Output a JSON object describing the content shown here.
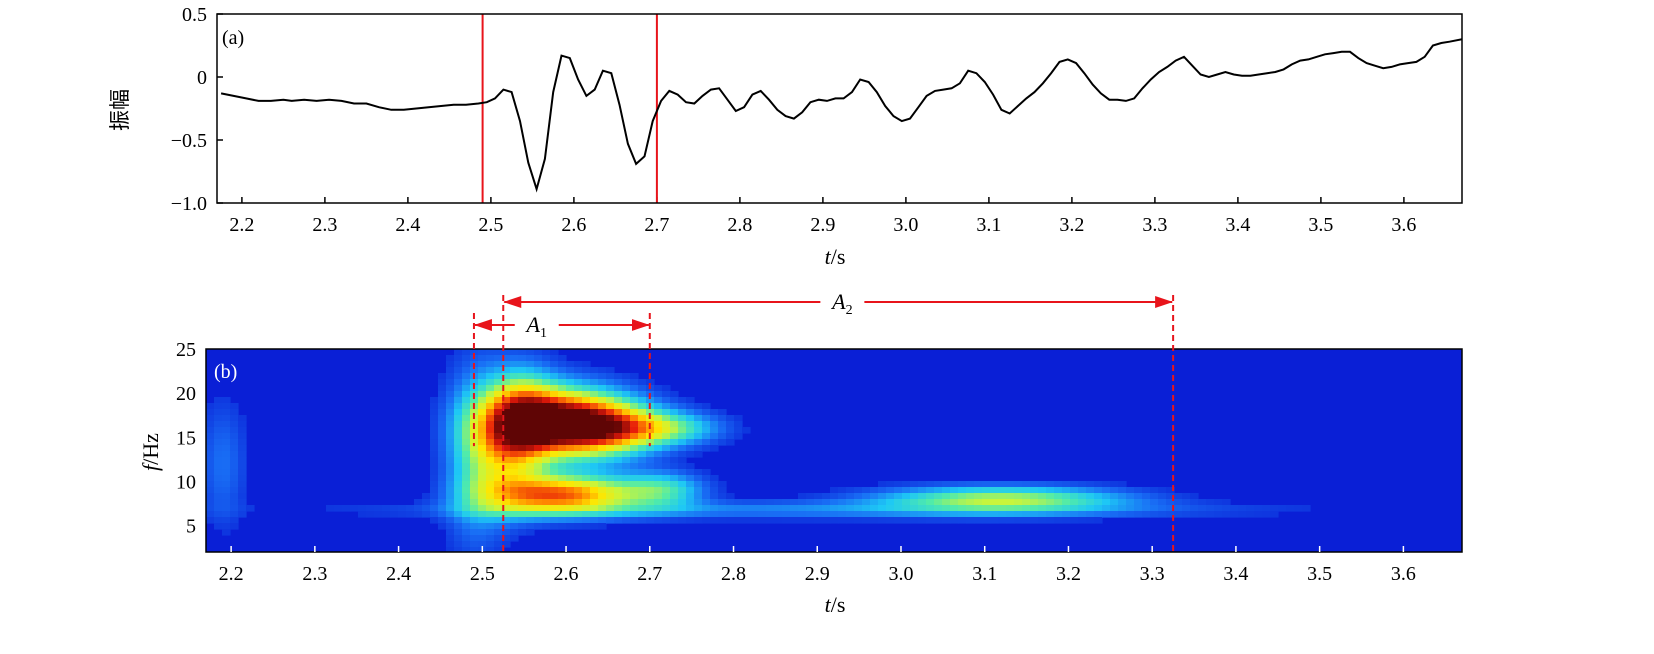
{
  "colors": {
    "waveform": "#000000",
    "marker": "#e8141b",
    "spectrum_background": "#0a1fd6"
  },
  "chart_data": [
    {
      "type": "line",
      "panel_label": "(a)",
      "xlabel_italic": "t",
      "xlabel_unit": "/s",
      "ylabel": "振幅",
      "xlim": [
        2.17,
        3.67
      ],
      "ylim": [
        -1.0,
        0.5
      ],
      "x_ticks": [
        2.2,
        2.3,
        2.4,
        2.5,
        2.6,
        2.7,
        2.8,
        2.9,
        3.0,
        3.1,
        3.2,
        3.3,
        3.4,
        3.5,
        3.6
      ],
      "x_tick_labels": [
        "2.2",
        "2.3",
        "2.4",
        "2.5",
        "2.6",
        "2.7",
        "2.8",
        "2.9",
        "3.0",
        "3.1",
        "3.2",
        "3.3",
        "3.4",
        "3.5",
        "3.6"
      ],
      "y_ticks": [
        0.5,
        0,
        -0.5,
        -1.0
      ],
      "y_tick_labels": [
        "0.5",
        "0",
        "−0.5",
        "−1.0"
      ],
      "vertical_markers": [
        2.49,
        2.7
      ],
      "series": [
        {
          "x": [
            2.175,
            2.19,
            2.205,
            2.22,
            2.235,
            2.25,
            2.26,
            2.275,
            2.29,
            2.305,
            2.32,
            2.335,
            2.35,
            2.365,
            2.38,
            2.395,
            2.41,
            2.425,
            2.44,
            2.455,
            2.47,
            2.485,
            2.495,
            2.505,
            2.515,
            2.525,
            2.535,
            2.545,
            2.555,
            2.565,
            2.575,
            2.585,
            2.595,
            2.605,
            2.615,
            2.625,
            2.635,
            2.645,
            2.655,
            2.665,
            2.675,
            2.685,
            2.695,
            2.705,
            2.715,
            2.725,
            2.735,
            2.745,
            2.755,
            2.765,
            2.775,
            2.785,
            2.795,
            2.805,
            2.815,
            2.825,
            2.835,
            2.845,
            2.855,
            2.865,
            2.875,
            2.885,
            2.895,
            2.905,
            2.915,
            2.925,
            2.935,
            2.945,
            2.955,
            2.965,
            2.975,
            2.985,
            2.995,
            3.005,
            3.015,
            3.025,
            3.035,
            3.045,
            3.055,
            3.065,
            3.075,
            3.085,
            3.095,
            3.105,
            3.115,
            3.125,
            3.135,
            3.145,
            3.155,
            3.165,
            3.175,
            3.185,
            3.195,
            3.205,
            3.215,
            3.225,
            3.235,
            3.245,
            3.255,
            3.265,
            3.275,
            3.285,
            3.295,
            3.305,
            3.315,
            3.325,
            3.335,
            3.345,
            3.355,
            3.365,
            3.375,
            3.385,
            3.395,
            3.405,
            3.415,
            3.425,
            3.435,
            3.445,
            3.455,
            3.465,
            3.475,
            3.485,
            3.495,
            3.505,
            3.515,
            3.525,
            3.535,
            3.545,
            3.555,
            3.565,
            3.575,
            3.585,
            3.595,
            3.605,
            3.615,
            3.625,
            3.635,
            3.645,
            3.655,
            3.67
          ],
          "y": [
            -0.13,
            -0.15,
            -0.17,
            -0.19,
            -0.19,
            -0.18,
            -0.19,
            -0.18,
            -0.19,
            -0.18,
            -0.19,
            -0.21,
            -0.21,
            -0.24,
            -0.26,
            -0.26,
            -0.25,
            -0.24,
            -0.23,
            -0.22,
            -0.22,
            -0.21,
            -0.2,
            -0.17,
            -0.1,
            -0.12,
            -0.35,
            -0.68,
            -0.89,
            -0.65,
            -0.12,
            0.17,
            0.15,
            -0.02,
            -0.15,
            -0.1,
            0.05,
            0.03,
            -0.22,
            -0.53,
            -0.69,
            -0.63,
            -0.35,
            -0.19,
            -0.11,
            -0.14,
            -0.2,
            -0.21,
            -0.15,
            -0.1,
            -0.09,
            -0.18,
            -0.27,
            -0.24,
            -0.14,
            -0.11,
            -0.18,
            -0.26,
            -0.31,
            -0.33,
            -0.28,
            -0.2,
            -0.18,
            -0.19,
            -0.17,
            -0.17,
            -0.12,
            -0.02,
            -0.04,
            -0.12,
            -0.23,
            -0.31,
            -0.35,
            -0.33,
            -0.24,
            -0.15,
            -0.11,
            -0.1,
            -0.09,
            -0.05,
            0.05,
            0.03,
            -0.04,
            -0.14,
            -0.26,
            -0.29,
            -0.23,
            -0.17,
            -0.12,
            -0.05,
            0.03,
            0.12,
            0.14,
            0.11,
            0.03,
            -0.06,
            -0.13,
            -0.18,
            -0.18,
            -0.19,
            -0.17,
            -0.09,
            -0.02,
            0.04,
            0.08,
            0.13,
            0.16,
            0.09,
            0.02,
            0.0,
            0.02,
            0.04,
            0.02,
            0.01,
            0.01,
            0.02,
            0.03,
            0.04,
            0.06,
            0.1,
            0.13,
            0.14,
            0.16,
            0.18,
            0.19,
            0.2,
            0.2,
            0.15,
            0.11,
            0.09,
            0.07,
            0.08,
            0.1,
            0.11,
            0.12,
            0.16,
            0.25,
            0.27,
            0.28,
            0.3
          ]
        }
      ]
    },
    {
      "type": "heatmap",
      "panel_label": "(b)",
      "xlabel_italic": "t",
      "xlabel_unit": "/s",
      "ylabel_italic": "f",
      "ylabel_unit": "/Hz",
      "xlim": [
        2.17,
        3.67
      ],
      "ylim": [
        2,
        25
      ],
      "x_ticks": [
        2.2,
        2.3,
        2.4,
        2.5,
        2.6,
        2.7,
        2.8,
        2.9,
        3.0,
        3.1,
        3.2,
        3.3,
        3.4,
        3.5,
        3.6
      ],
      "x_tick_labels": [
        "2.2",
        "2.3",
        "2.4",
        "2.5",
        "2.6",
        "2.7",
        "2.8",
        "2.9",
        "3.0",
        "3.1",
        "3.2",
        "3.3",
        "3.4",
        "3.5",
        "3.6"
      ],
      "y_ticks": [
        25,
        20,
        15,
        10,
        5
      ],
      "y_tick_labels": [
        "25",
        "20",
        "15",
        "10",
        "5"
      ],
      "energy_blobs": [
        {
          "t": 2.595,
          "f": 16.6,
          "st": 0.055,
          "sf": 2.6,
          "a": 1.0
        },
        {
          "t": 2.545,
          "f": 17.8,
          "st": 0.03,
          "sf": 3.5,
          "a": 0.45
        },
        {
          "t": 2.655,
          "f": 16.0,
          "st": 0.045,
          "sf": 2.0,
          "a": 0.4
        },
        {
          "t": 2.595,
          "f": 8.5,
          "st": 0.06,
          "sf": 1.5,
          "a": 0.75
        },
        {
          "t": 2.53,
          "f": 12.5,
          "st": 0.03,
          "sf": 4.0,
          "a": 0.35
        },
        {
          "t": 2.72,
          "f": 16.0,
          "st": 0.045,
          "sf": 1.3,
          "a": 0.32
        },
        {
          "t": 2.715,
          "f": 9.0,
          "st": 0.035,
          "sf": 1.4,
          "a": 0.3
        },
        {
          "t": 2.49,
          "f": 13.0,
          "st": 0.025,
          "sf": 7.0,
          "a": 0.22
        },
        {
          "t": 3.12,
          "f": 8.0,
          "st": 0.1,
          "sf": 1.0,
          "a": 0.45
        },
        {
          "t": 2.9,
          "f": 6.8,
          "st": 0.35,
          "sf": 0.7,
          "a": 0.15
        },
        {
          "t": 2.19,
          "f": 12.0,
          "st": 0.02,
          "sf": 5.0,
          "a": 0.12
        }
      ],
      "dashed_markers": [
        {
          "t": 2.49,
          "f_from": 14.0,
          "to_axis_bottom": false
        },
        {
          "t": 2.525,
          "f_from": 25.0,
          "to_axis_bottom": true
        },
        {
          "t": 2.7,
          "f_from": 14.0,
          "to_axis_bottom": false
        },
        {
          "t": 3.325,
          "f_from": 25.0,
          "to_axis_bottom": true
        }
      ],
      "annotations": [
        {
          "label": "A",
          "subscript": "1",
          "t_start": 2.49,
          "t_end": 2.7,
          "t_label": 2.565
        },
        {
          "label": "A",
          "subscript": "2",
          "t_start": 2.525,
          "t_end": 3.325,
          "t_label": 2.93
        }
      ]
    }
  ]
}
